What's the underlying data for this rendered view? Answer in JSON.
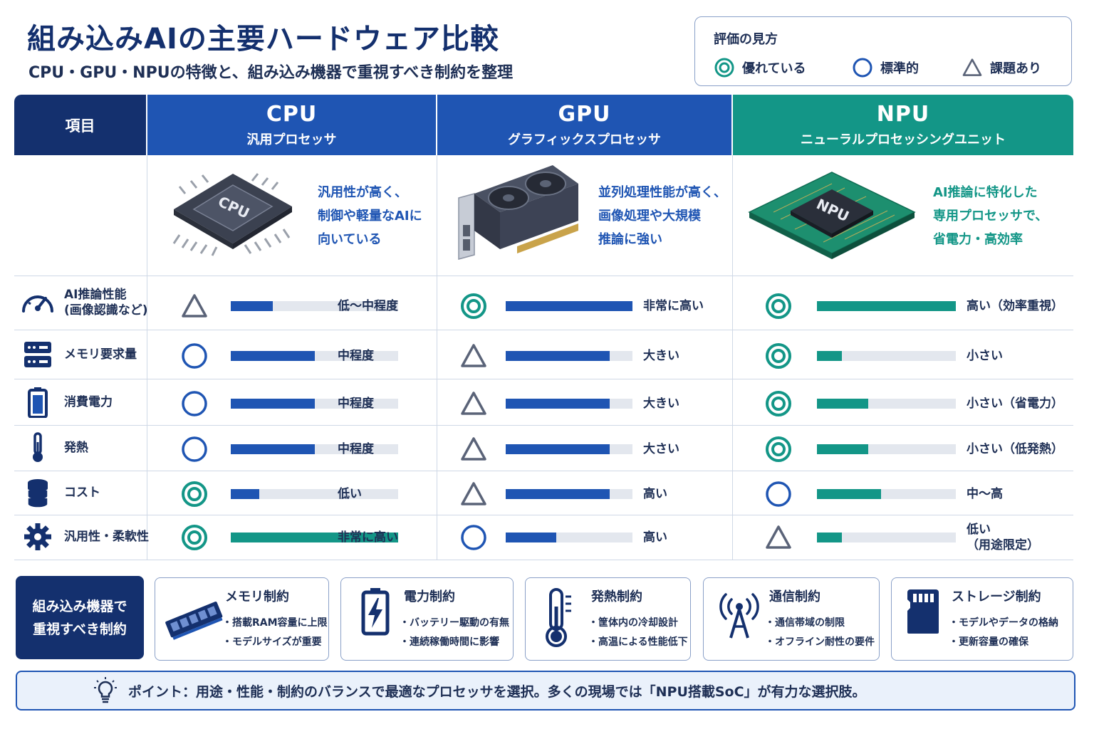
{
  "title": "組み込みAIの主要ハードウェア比較",
  "subtitle": "CPU・GPU・NPUの特徴と、組み込み機器で重視すべき制約を整理",
  "legend": {
    "title": "評価の見方",
    "excellent": "優れている",
    "standard": "標準的",
    "issue": "課題あり"
  },
  "header": {
    "item": "項目",
    "cpu": {
      "name": "CPU",
      "full": "汎用プロセッサ"
    },
    "gpu": {
      "name": "GPU",
      "full": "グラフィックスプロセッサ"
    },
    "npu": {
      "name": "NPU",
      "full": "ニューラルプロセッシングユニット"
    }
  },
  "images": {
    "cpu_chip_label": "CPU",
    "npu_chip_label": "NPU"
  },
  "descriptions": {
    "cpu": "汎用性が高く、\n制御や軽量なAIに\n向いている",
    "gpu": "並列処理性能が高く、\n画像処理や大規模\n推論に強い",
    "npu": "AI推論に特化した\n専用プロセッサで、\n省電力・高効率"
  },
  "colors": {
    "navy": "#14306e",
    "blue": "#1f55b3",
    "teal": "#139687",
    "triangle": "#5a6378"
  },
  "rows": [
    {
      "label": "AI推論性能\n(画像認識など)",
      "icon": "gauge-icon",
      "cpu": {
        "rating": "triangle",
        "level": 0.25,
        "text": "低～中程度"
      },
      "gpu": {
        "rating": "double-circle",
        "level": 1.0,
        "text": "非常に高い"
      },
      "npu": {
        "rating": "double-circle",
        "level": 1.0,
        "text": "高い（効率重視）"
      }
    },
    {
      "label": "メモリ要求量",
      "icon": "server-icon",
      "cpu": {
        "rating": "circle",
        "level": 0.5,
        "text": "中程度"
      },
      "gpu": {
        "rating": "triangle",
        "level": 0.82,
        "text": "大きい"
      },
      "npu": {
        "rating": "double-circle",
        "level": 0.18,
        "text": "小さい"
      }
    },
    {
      "label": "消費電力",
      "icon": "battery-icon",
      "cpu": {
        "rating": "circle",
        "level": 0.5,
        "text": "中程度"
      },
      "gpu": {
        "rating": "triangle",
        "level": 0.82,
        "text": "大きい"
      },
      "npu": {
        "rating": "double-circle",
        "level": 0.37,
        "text": "小さい（省電力）"
      }
    },
    {
      "label": "発熱",
      "icon": "thermometer-icon",
      "cpu": {
        "rating": "circle",
        "level": 0.5,
        "text": "中程度"
      },
      "gpu": {
        "rating": "triangle",
        "level": 0.82,
        "text": "大さい"
      },
      "npu": {
        "rating": "double-circle",
        "level": 0.37,
        "text": "小さい（低発熱）"
      }
    },
    {
      "label": "コスト",
      "icon": "coins-icon",
      "cpu": {
        "rating": "double-circle",
        "level": 0.17,
        "text": "低い"
      },
      "gpu": {
        "rating": "triangle",
        "level": 0.82,
        "text": "高い"
      },
      "npu": {
        "rating": "circle",
        "level": 0.46,
        "text": "中～高"
      }
    },
    {
      "label": "汎用性・柔軟性",
      "icon": "gear-icon",
      "cpu": {
        "rating": "double-circle",
        "level": 1.0,
        "text": "非常に高い"
      },
      "gpu": {
        "rating": "circle",
        "level": 0.4,
        "text": "高い"
      },
      "npu": {
        "rating": "triangle",
        "level": 0.18,
        "text": "低い\n（用途限定）"
      }
    }
  ],
  "constraints": {
    "label": "組み込み機器で\n重視すべき制約",
    "cards": [
      {
        "title": "メモリ制約",
        "icon": "ram-icon",
        "bullets": [
          "・搭載RAM容量に上限",
          "・モデルサイズが重要"
        ]
      },
      {
        "title": "電力制約",
        "icon": "battery-icon",
        "bullets": [
          "・バッテリー駆動の有無",
          "・連続稼働時間に影響"
        ]
      },
      {
        "title": "発熱制約",
        "icon": "thermometer-icon",
        "bullets": [
          "・筐体内の冷却設計",
          "・高温による性能低下"
        ]
      },
      {
        "title": "通信制約",
        "icon": "antenna-icon",
        "bullets": [
          "・通信帯域の制限",
          "・オフライン耐性の要件"
        ]
      },
      {
        "title": "ストレージ制約",
        "icon": "sd-card-icon",
        "bullets": [
          "・モデルやデータの格納",
          "・更新容量の確保"
        ]
      }
    ]
  },
  "point": "ポイント：用途・性能・制約のバランスで最適なプロセッサを選択。多くの現場では「NPU搭載SoC」が有力な選択肢。"
}
